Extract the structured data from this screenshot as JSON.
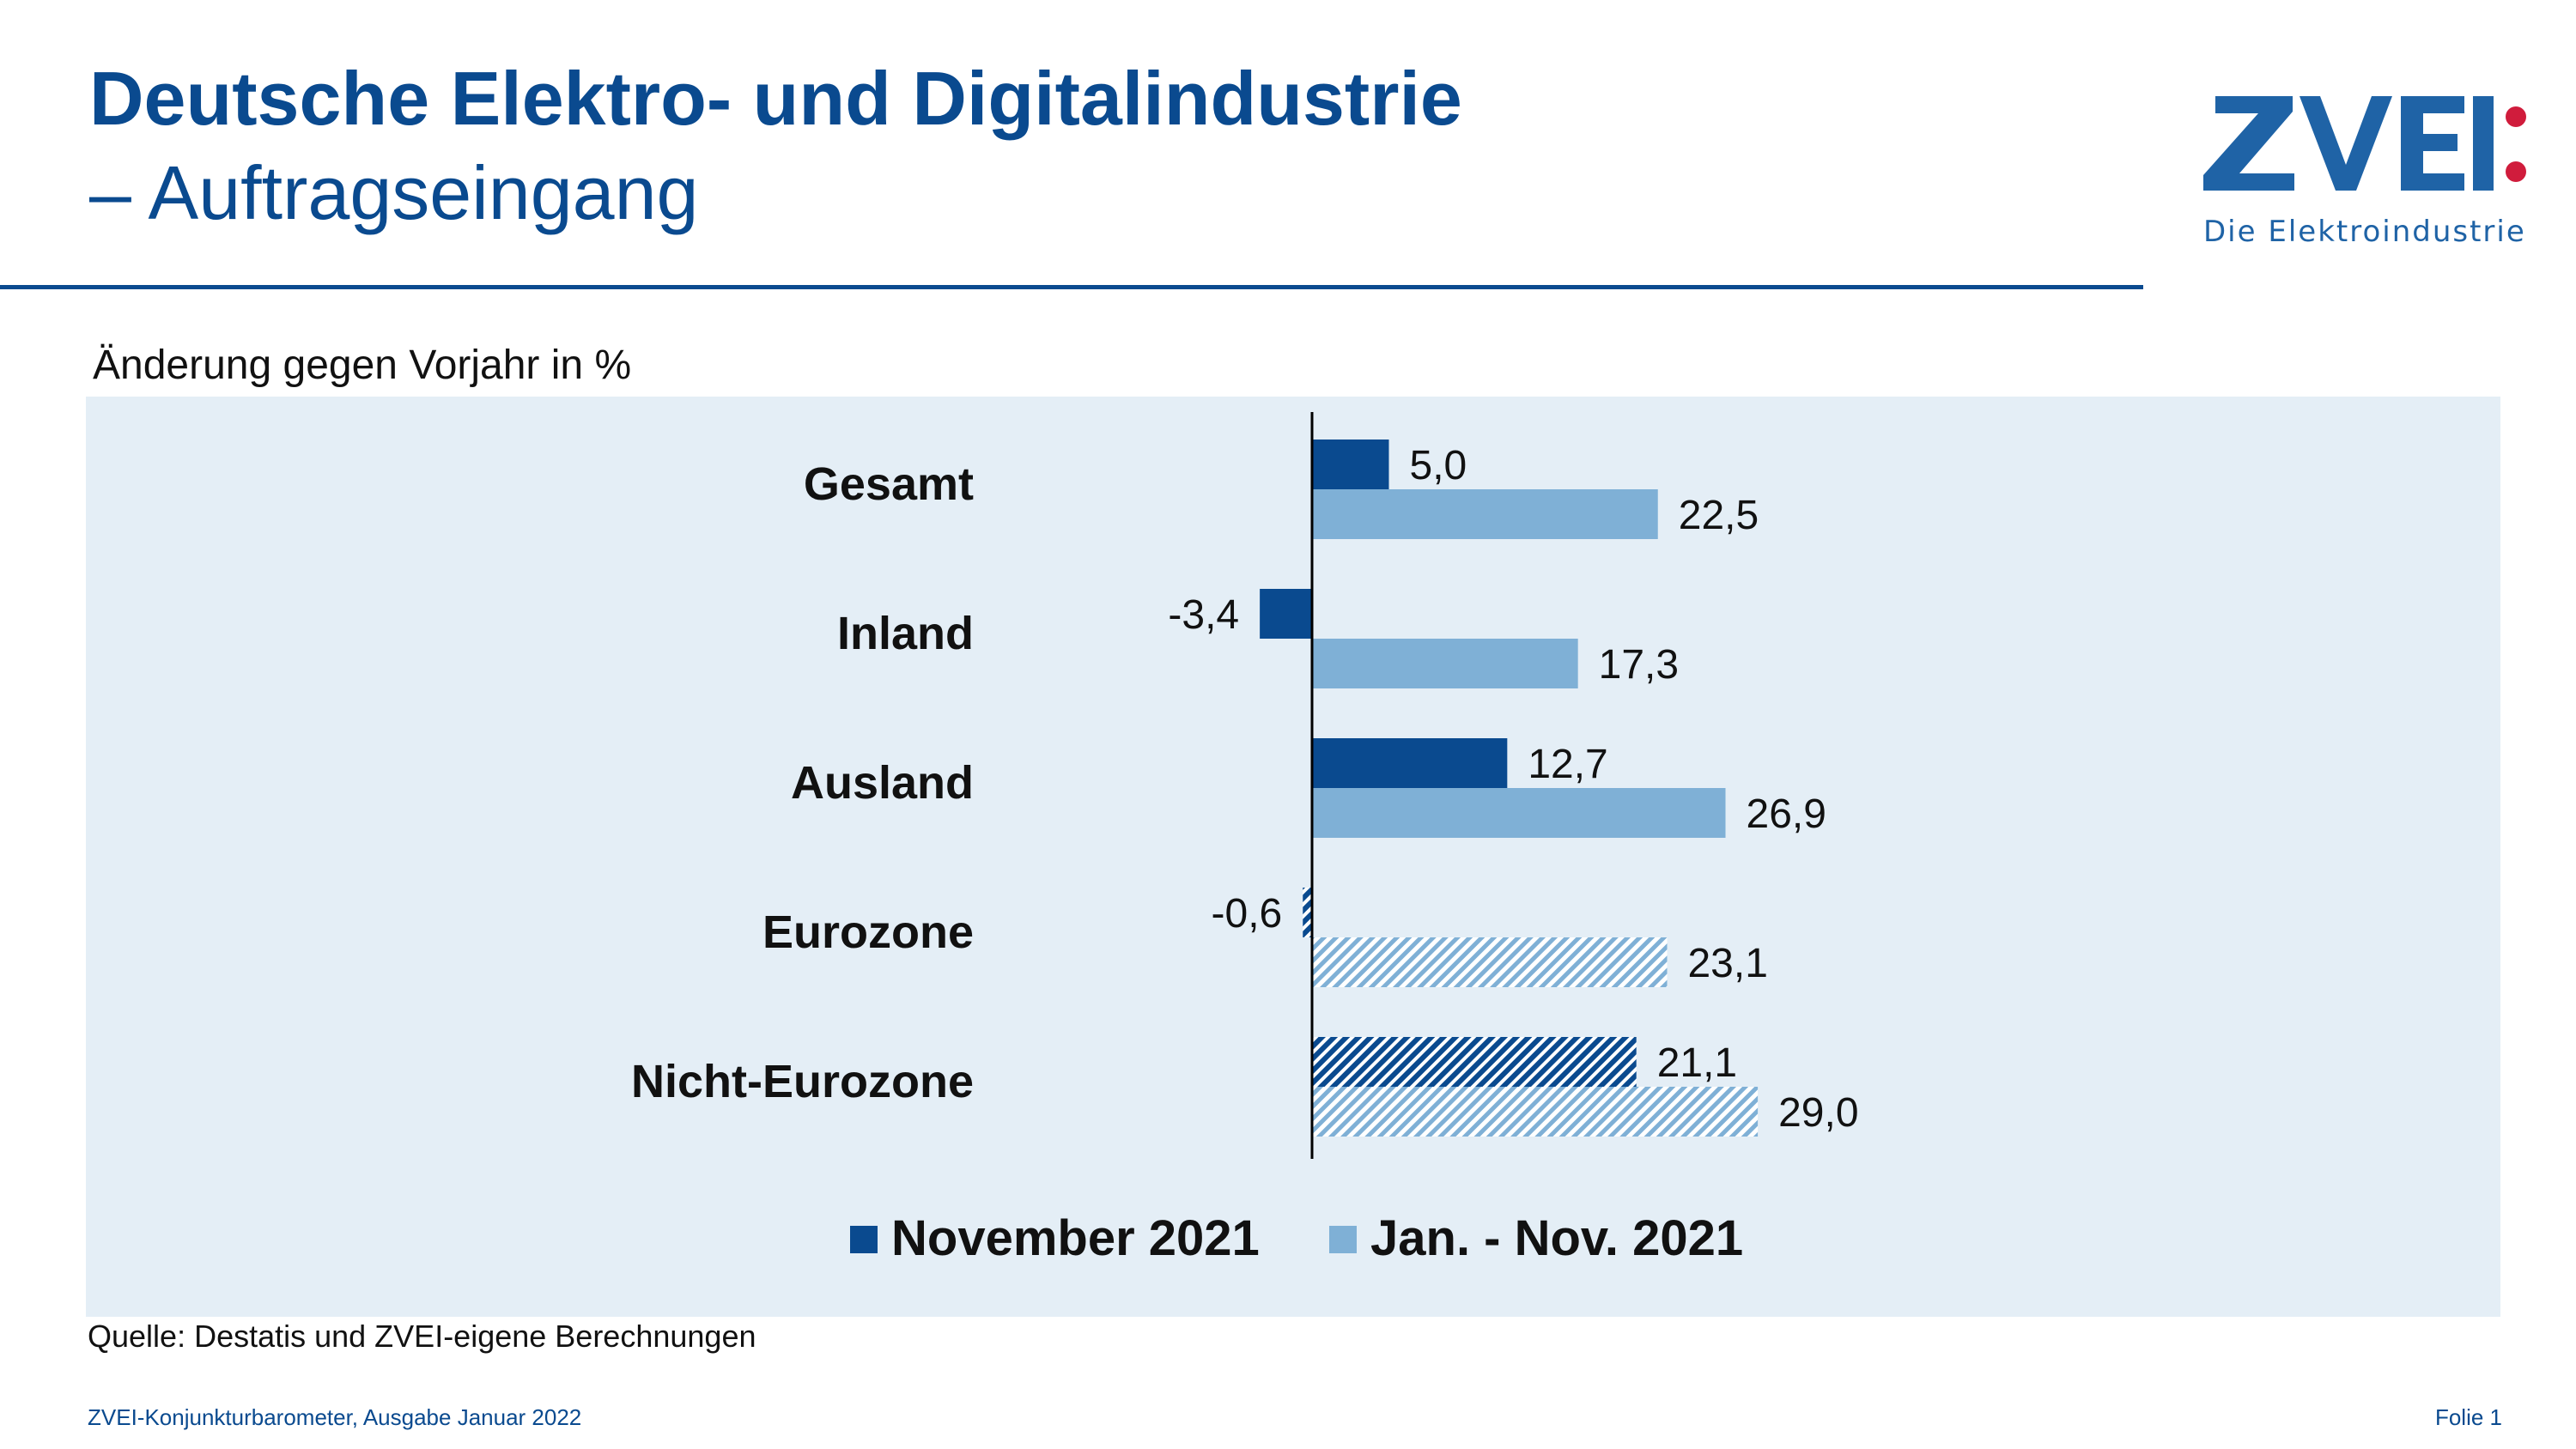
{
  "slide": {
    "title": "Deutsche Elektro- und Digitalindustrie",
    "subtitle": "– Auftragseingang",
    "chart_caption": "Änderung gegen Vorjahr in %",
    "source": "Quelle: Destatis und ZVEI-eigene Berechnungen",
    "footer_left": "ZVEI-Konjunkturbarometer, Ausgabe Januar 2022",
    "footer_right": "Folie 1"
  },
  "logo": {
    "wordmark": "ZVEI",
    "tagline": "Die Elektroindustrie",
    "color": "#1f63a6",
    "accent_color": "#d01c3c"
  },
  "chart_data": {
    "type": "bar",
    "orientation": "horizontal",
    "title": "",
    "categories": [
      "Gesamt",
      "Inland",
      "Ausland",
      "Eurozone",
      "Nicht-Eurozone"
    ],
    "hatched_categories": [
      "Eurozone",
      "Nicht-Eurozone"
    ],
    "series": [
      {
        "name": "November 2021",
        "color": "#0a4a8f",
        "values": [
          5.0,
          -3.4,
          12.7,
          -0.6,
          21.1
        ]
      },
      {
        "name": "Jan. - Nov. 2021",
        "color": "#7fb0d6",
        "values": [
          22.5,
          17.3,
          26.9,
          23.1,
          29.0
        ]
      }
    ],
    "data_labels": [
      [
        "5,0",
        "-3,4",
        "12,7",
        "-0,6",
        "21,1"
      ],
      [
        "22,5",
        "17,3",
        "26,9",
        "23,1",
        "29,0"
      ]
    ],
    "xlim": [
      -34,
      40
    ],
    "grid": false,
    "legend_position": "bottom",
    "background": "#e4eef6"
  }
}
